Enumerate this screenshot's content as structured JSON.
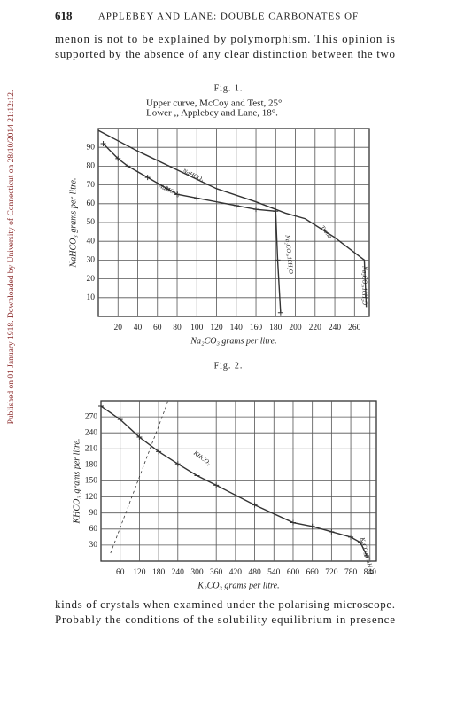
{
  "header": {
    "page_number": "618",
    "running_title": "APPLEBEY AND LANE: DOUBLE CARBONATES OF"
  },
  "side_note": "Published on 01 January 1918. Downloaded by University of Connecticut on 28/10/2014 21:12:12.",
  "paragraphs": [
    [
      "menon is not to be explained by polymorphism.  This opinion is",
      "supported by the absence of any clear distinction between the two"
    ],
    [
      "kinds of crystals when examined under the polarising microscope.",
      "Probably the conditions of the solubility equilibrium in presence"
    ]
  ],
  "chart_data": [
    {
      "type": "line",
      "label": "Fig. 1.",
      "caption": [
        "Upper curve, McCoy and Test, 25°",
        "Lower   ,,   Applebey and Lane, 18°."
      ],
      "xlabel": "Na₂CO₃ grams per litre.",
      "ylabel": "NaHCO₃ grams per litre.",
      "xlim": [
        0,
        275
      ],
      "ylim": [
        0,
        100
      ],
      "xticks": [
        20,
        40,
        60,
        80,
        100,
        120,
        140,
        160,
        180,
        200,
        220,
        240,
        260
      ],
      "yticks": [
        10,
        20,
        30,
        40,
        50,
        60,
        70,
        80,
        90
      ],
      "grid": true,
      "series": [
        {
          "color": "#333333",
          "markers": false,
          "dash": false,
          "x": [
            0,
            40,
            80,
            120,
            160,
            190,
            210,
            240,
            265,
            270,
            272
          ],
          "values": [
            99,
            88,
            78,
            68,
            61,
            55,
            52,
            42,
            32,
            30,
            5
          ]
        },
        {
          "color": "#333333",
          "markers": true,
          "dash": false,
          "x": [
            5,
            20,
            30,
            50,
            70,
            80,
            100,
            140,
            160,
            180,
            182,
            185
          ],
          "values": [
            92,
            84,
            80,
            74,
            68,
            65,
            63,
            59,
            57,
            56,
            30,
            2
          ]
        }
      ],
      "annotations": [
        "NaHCO₃",
        "NaHCO₃",
        "Na₂CO₃,10H₂O",
        "Trona",
        "Na₂CO₃,10H₂O"
      ]
    },
    {
      "type": "line",
      "label": "Fig. 2.",
      "xlabel": "K₂CO₃ grams per litre.",
      "ylabel": "KHCO₃ grams per litre.",
      "xlim": [
        0,
        860
      ],
      "ylim": [
        0,
        300
      ],
      "xticks": [
        60,
        120,
        180,
        240,
        300,
        360,
        420,
        480,
        540,
        600,
        660,
        720,
        780,
        840
      ],
      "yticks": [
        30,
        60,
        90,
        120,
        150,
        180,
        210,
        240,
        270
      ],
      "grid": true,
      "series": [
        {
          "color": "#333333",
          "markers": true,
          "dash": false,
          "x": [
            0,
            60,
            120,
            180,
            240,
            300,
            360,
            480,
            600,
            660,
            720,
            780,
            810,
            830
          ],
          "values": [
            290,
            265,
            232,
            205,
            182,
            160,
            142,
            105,
            72,
            65,
            55,
            45,
            35,
            10
          ]
        },
        {
          "color": "#333333",
          "markers": false,
          "dash": true,
          "x": [
            30,
            210
          ],
          "values": [
            15,
            300
          ]
        }
      ],
      "annotations": [
        "KHCO₃",
        "K₂CO₃,1½H₂O"
      ]
    }
  ]
}
